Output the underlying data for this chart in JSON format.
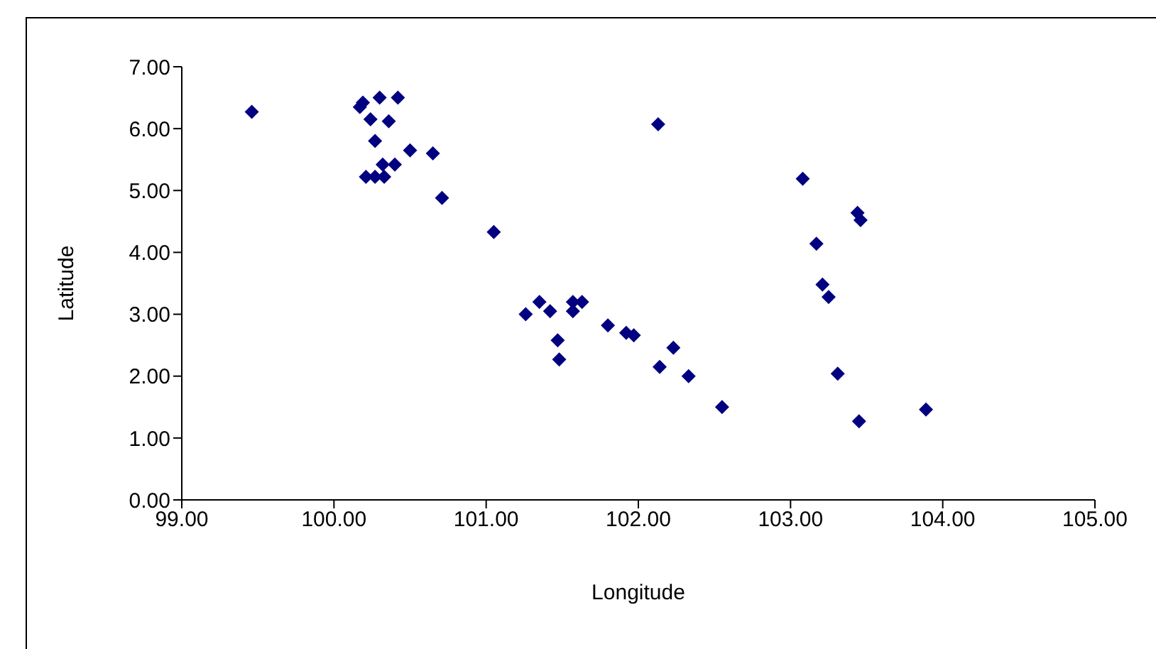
{
  "chart_data": {
    "type": "scatter",
    "xlabel": "Longitude",
    "ylabel": "Latitude",
    "x": [
      99.46,
      100.17,
      100.19,
      100.3,
      100.42,
      100.24,
      100.36,
      100.27,
      100.5,
      100.65,
      100.32,
      100.4,
      100.21,
      100.27,
      100.33,
      100.71,
      101.05,
      101.26,
      101.35,
      101.42,
      101.57,
      101.57,
      101.63,
      101.47,
      101.48,
      101.8,
      101.92,
      101.97,
      102.14,
      102.23,
      102.33,
      102.55,
      102.13,
      103.08,
      103.44,
      103.46,
      103.17,
      103.21,
      103.25,
      103.31,
      103.45,
      103.89
    ],
    "values": [
      6.27,
      6.35,
      6.42,
      6.5,
      6.5,
      6.15,
      6.12,
      5.8,
      5.65,
      5.6,
      5.42,
      5.42,
      5.22,
      5.22,
      5.22,
      4.88,
      4.33,
      3.0,
      3.2,
      3.05,
      3.05,
      3.2,
      3.2,
      2.58,
      2.27,
      2.82,
      2.7,
      2.66,
      2.15,
      2.46,
      2.0,
      1.5,
      6.07,
      5.19,
      4.64,
      4.52,
      4.14,
      3.48,
      3.28,
      2.04,
      1.27,
      1.46
    ],
    "color": "#000080",
    "marker": "diamond",
    "grid": false,
    "xlim": [
      99,
      105
    ],
    "xticks": [
      {
        "value": 99,
        "label": "99.00"
      },
      {
        "value": 100,
        "label": "100.00"
      },
      {
        "value": 101,
        "label": "101.00"
      },
      {
        "value": 102,
        "label": "102.00"
      },
      {
        "value": 103,
        "label": "103.00"
      },
      {
        "value": 104,
        "label": "104.00"
      },
      {
        "value": 105,
        "label": "105.00"
      }
    ],
    "ylim": [
      0,
      7
    ],
    "yticks": [
      {
        "value": 0,
        "label": "0.00"
      },
      {
        "value": 1,
        "label": "1.00"
      },
      {
        "value": 2,
        "label": "2.00"
      },
      {
        "value": 3,
        "label": "3.00"
      },
      {
        "value": 4,
        "label": "4.00"
      },
      {
        "value": 5,
        "label": "5.00"
      },
      {
        "value": 6,
        "label": "6.00"
      },
      {
        "value": 7,
        "label": "7.00"
      }
    ]
  }
}
